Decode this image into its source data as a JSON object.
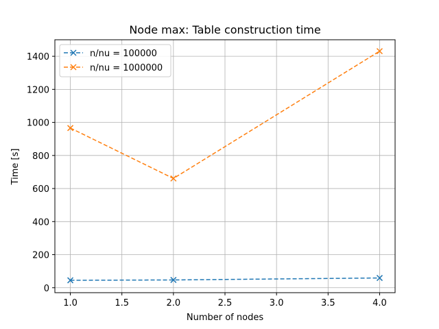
{
  "chart_data": {
    "type": "line",
    "title": "Node max: Table construction time",
    "xlabel": "Number of nodes",
    "ylabel": "Time [s]",
    "xlim": [
      0.85,
      4.15
    ],
    "ylim": [
      -30,
      1500
    ],
    "xticks": [
      1.0,
      1.5,
      2.0,
      2.5,
      3.0,
      3.5,
      4.0
    ],
    "xtick_labels": [
      "1.0",
      "1.5",
      "2.0",
      "2.5",
      "3.0",
      "3.5",
      "4.0"
    ],
    "yticks": [
      0,
      200,
      400,
      600,
      800,
      1000,
      1200,
      1400
    ],
    "ytick_labels": [
      "0",
      "200",
      "400",
      "600",
      "800",
      "1000",
      "1200",
      "1400"
    ],
    "grid": true,
    "legend_position": "upper-left",
    "series": [
      {
        "name": "n/nu = 100000",
        "color": "#1f77b4",
        "linestyle": "dashed",
        "marker": "x",
        "x": [
          1,
          2,
          4
        ],
        "y": [
          45,
          47,
          59
        ]
      },
      {
        "name": "n/nu = 1000000",
        "color": "#ff7f0e",
        "linestyle": "dashed",
        "marker": "x",
        "x": [
          1,
          2,
          4
        ],
        "y": [
          966,
          661,
          1431
        ]
      }
    ]
  }
}
